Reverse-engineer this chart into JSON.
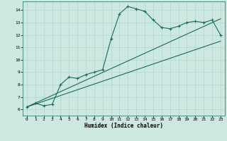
{
  "xlabel": "Humidex (Indice chaleur)",
  "xlim": [
    -0.5,
    23.5
  ],
  "ylim": [
    5.5,
    14.7
  ],
  "xticks": [
    0,
    1,
    2,
    3,
    4,
    5,
    6,
    7,
    8,
    9,
    10,
    11,
    12,
    13,
    14,
    15,
    16,
    17,
    18,
    19,
    20,
    21,
    22,
    23
  ],
  "yticks": [
    6,
    7,
    8,
    9,
    10,
    11,
    12,
    13,
    14
  ],
  "bg_color": "#cce8e0",
  "line_color": "#1a6b5a",
  "grid_color": "#b0d8d0",
  "curve1_x": [
    0,
    1,
    2,
    3,
    4,
    5,
    6,
    7,
    8,
    9,
    10,
    11,
    12,
    13,
    14,
    15,
    16,
    17,
    18,
    19,
    20,
    21,
    22,
    23
  ],
  "curve1_y": [
    6.2,
    6.5,
    6.3,
    6.4,
    8.0,
    8.6,
    8.5,
    8.8,
    9.0,
    9.2,
    11.7,
    13.7,
    14.3,
    14.1,
    13.9,
    13.2,
    12.6,
    12.5,
    12.7,
    13.0,
    13.1,
    13.0,
    13.2,
    12.0
  ],
  "curve2_x": [
    0,
    23
  ],
  "curve2_y": [
    6.2,
    11.5
  ],
  "curve3_x": [
    0,
    23
  ],
  "curve3_y": [
    6.2,
    13.3
  ]
}
